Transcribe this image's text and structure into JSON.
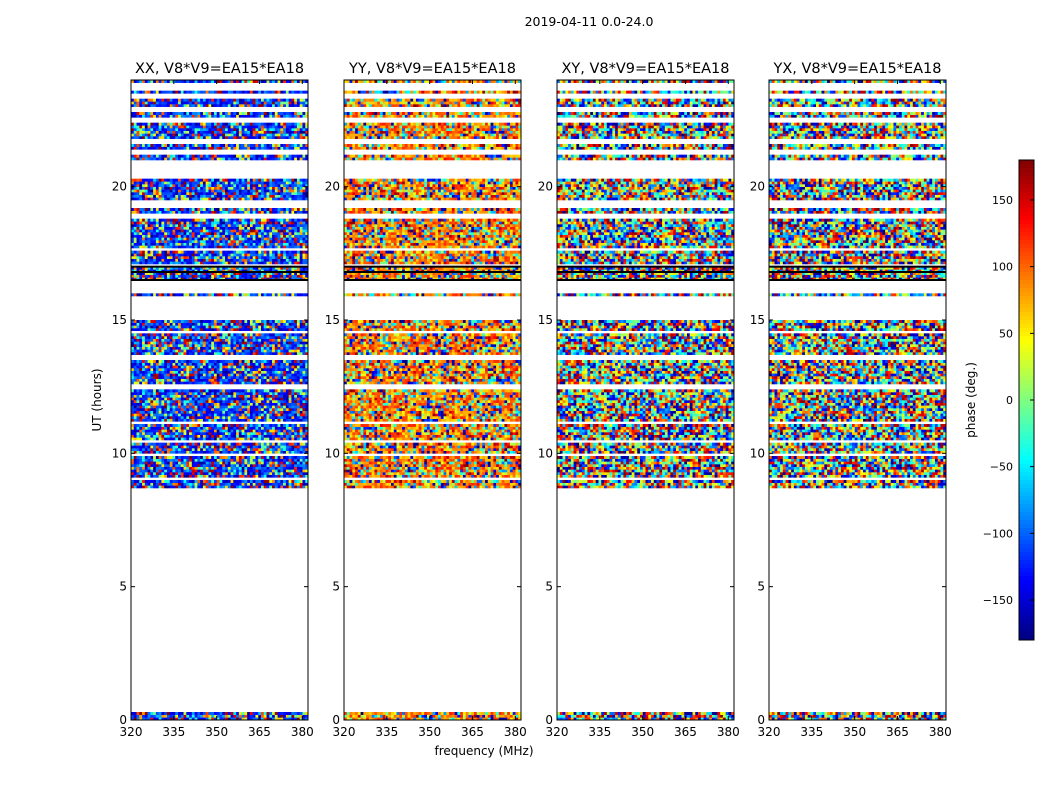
{
  "figure": {
    "suptitle": "2019-04-11 0.0-24.0",
    "xlabel": "frequency (MHz)",
    "ylabel": "UT (hours)",
    "colorbar_label": "phase (deg.)"
  },
  "chart_data": {
    "type": "heatmap",
    "title": "2019-04-11 0.0-24.0",
    "xlabel": "frequency (MHz)",
    "ylabel": "UT (hours)",
    "xlim": [
      320,
      382
    ],
    "ylim": [
      0,
      24
    ],
    "xticks": [
      320,
      335,
      350,
      365,
      380
    ],
    "yticks": [
      0,
      5,
      10,
      15,
      20
    ],
    "colormap": "jet",
    "colorbar": {
      "label": "phase (deg.)",
      "range": [
        -180,
        180
      ],
      "ticks": [
        -150,
        -100,
        -50,
        0,
        50,
        100,
        150
      ],
      "tick_labels": [
        "−150",
        "−100",
        "−50",
        "0",
        "50",
        "100",
        "150"
      ]
    },
    "panels": [
      {
        "title": "XX, V8*V9=EA15*EA18",
        "bias": -120
      },
      {
        "title": "YY, V8*V9=EA15*EA18",
        "bias": 90
      },
      {
        "title": "XY, V8*V9=EA15*EA18",
        "bias": 0
      },
      {
        "title": "YX, V8*V9=EA15*EA18",
        "bias": 0
      }
    ],
    "flagged_bands_hours": [
      [
        0.3,
        8.7
      ],
      [
        9.0,
        9.1
      ],
      [
        9.9,
        10.0
      ],
      [
        10.4,
        10.5
      ],
      [
        11.1,
        11.15
      ],
      [
        12.4,
        12.6
      ],
      [
        13.5,
        13.7
      ],
      [
        14.5,
        14.6
      ],
      [
        15.0,
        15.9
      ],
      [
        16.0,
        16.5
      ],
      [
        17.0,
        17.05
      ],
      [
        17.6,
        17.65
      ],
      [
        18.8,
        19.0
      ],
      [
        19.2,
        19.5
      ],
      [
        20.3,
        21.0
      ],
      [
        21.2,
        21.4
      ],
      [
        21.6,
        21.8
      ],
      [
        22.4,
        22.6
      ],
      [
        22.8,
        23.0
      ],
      [
        23.3,
        23.5
      ],
      [
        23.6,
        23.9
      ]
    ],
    "black_lines_hours": [
      16.5,
      16.8,
      17.0
    ]
  }
}
